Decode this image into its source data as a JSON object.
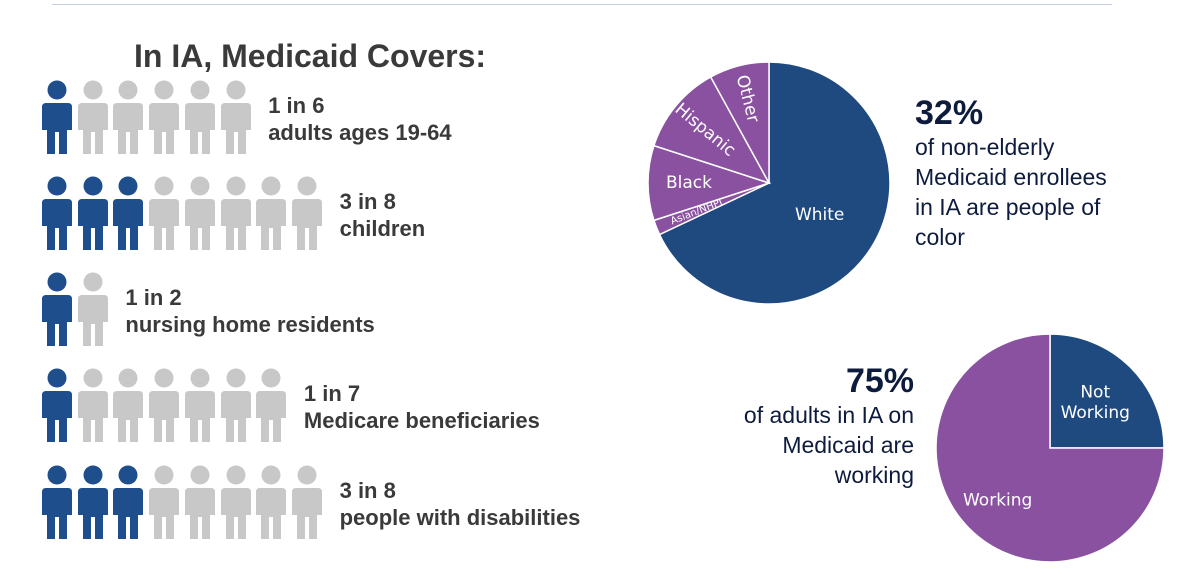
{
  "title": "In IA, Medicaid Covers:",
  "colors": {
    "covered": "#1f4e8c",
    "not_covered": "#c8c8c8",
    "white_slice": "#1f4a80",
    "poc_slice": "#8a51a0"
  },
  "rows": [
    {
      "ratio": "1 in 6",
      "group": "adults ages 19-64",
      "covered": 1,
      "total": 6
    },
    {
      "ratio": "3 in 8",
      "group": "children",
      "covered": 3,
      "total": 8
    },
    {
      "ratio": "1 in 2",
      "group": "nursing home residents",
      "covered": 1,
      "total": 2
    },
    {
      "ratio": "1 in 7",
      "group": "Medicare beneficiaries",
      "covered": 1,
      "total": 7
    },
    {
      "ratio": "3 in 8",
      "group": "people with disabilities",
      "covered": 3,
      "total": 8
    }
  ],
  "stats": {
    "poc": {
      "value": "32%",
      "lines": [
        "of non-elderly",
        "Medicaid enrollees",
        "in IA are people of",
        "color"
      ]
    },
    "working": {
      "value": "75%",
      "lines": [
        "of adults in IA on",
        "Medicaid are",
        "working"
      ]
    }
  },
  "chart_data": [
    {
      "type": "pie",
      "title": "",
      "labels": [
        "White",
        "Asian/NHPI",
        "Black",
        "Hispanic",
        "Other"
      ],
      "values": [
        68,
        2,
        10,
        12,
        8
      ],
      "colors": [
        "#1f4a80",
        "#8a51a0",
        "#8a51a0",
        "#8a51a0",
        "#8a51a0"
      ],
      "start_angle_deg": 0,
      "direction": "clockwise"
    },
    {
      "type": "pie",
      "title": "",
      "labels": [
        "Not Working",
        "Working"
      ],
      "label_lines": [
        [
          "Not",
          "Working"
        ],
        [
          "Working"
        ]
      ],
      "values": [
        25,
        75
      ],
      "colors": [
        "#1f4a80",
        "#8a51a0"
      ],
      "start_angle_deg": 0,
      "direction": "clockwise"
    }
  ]
}
